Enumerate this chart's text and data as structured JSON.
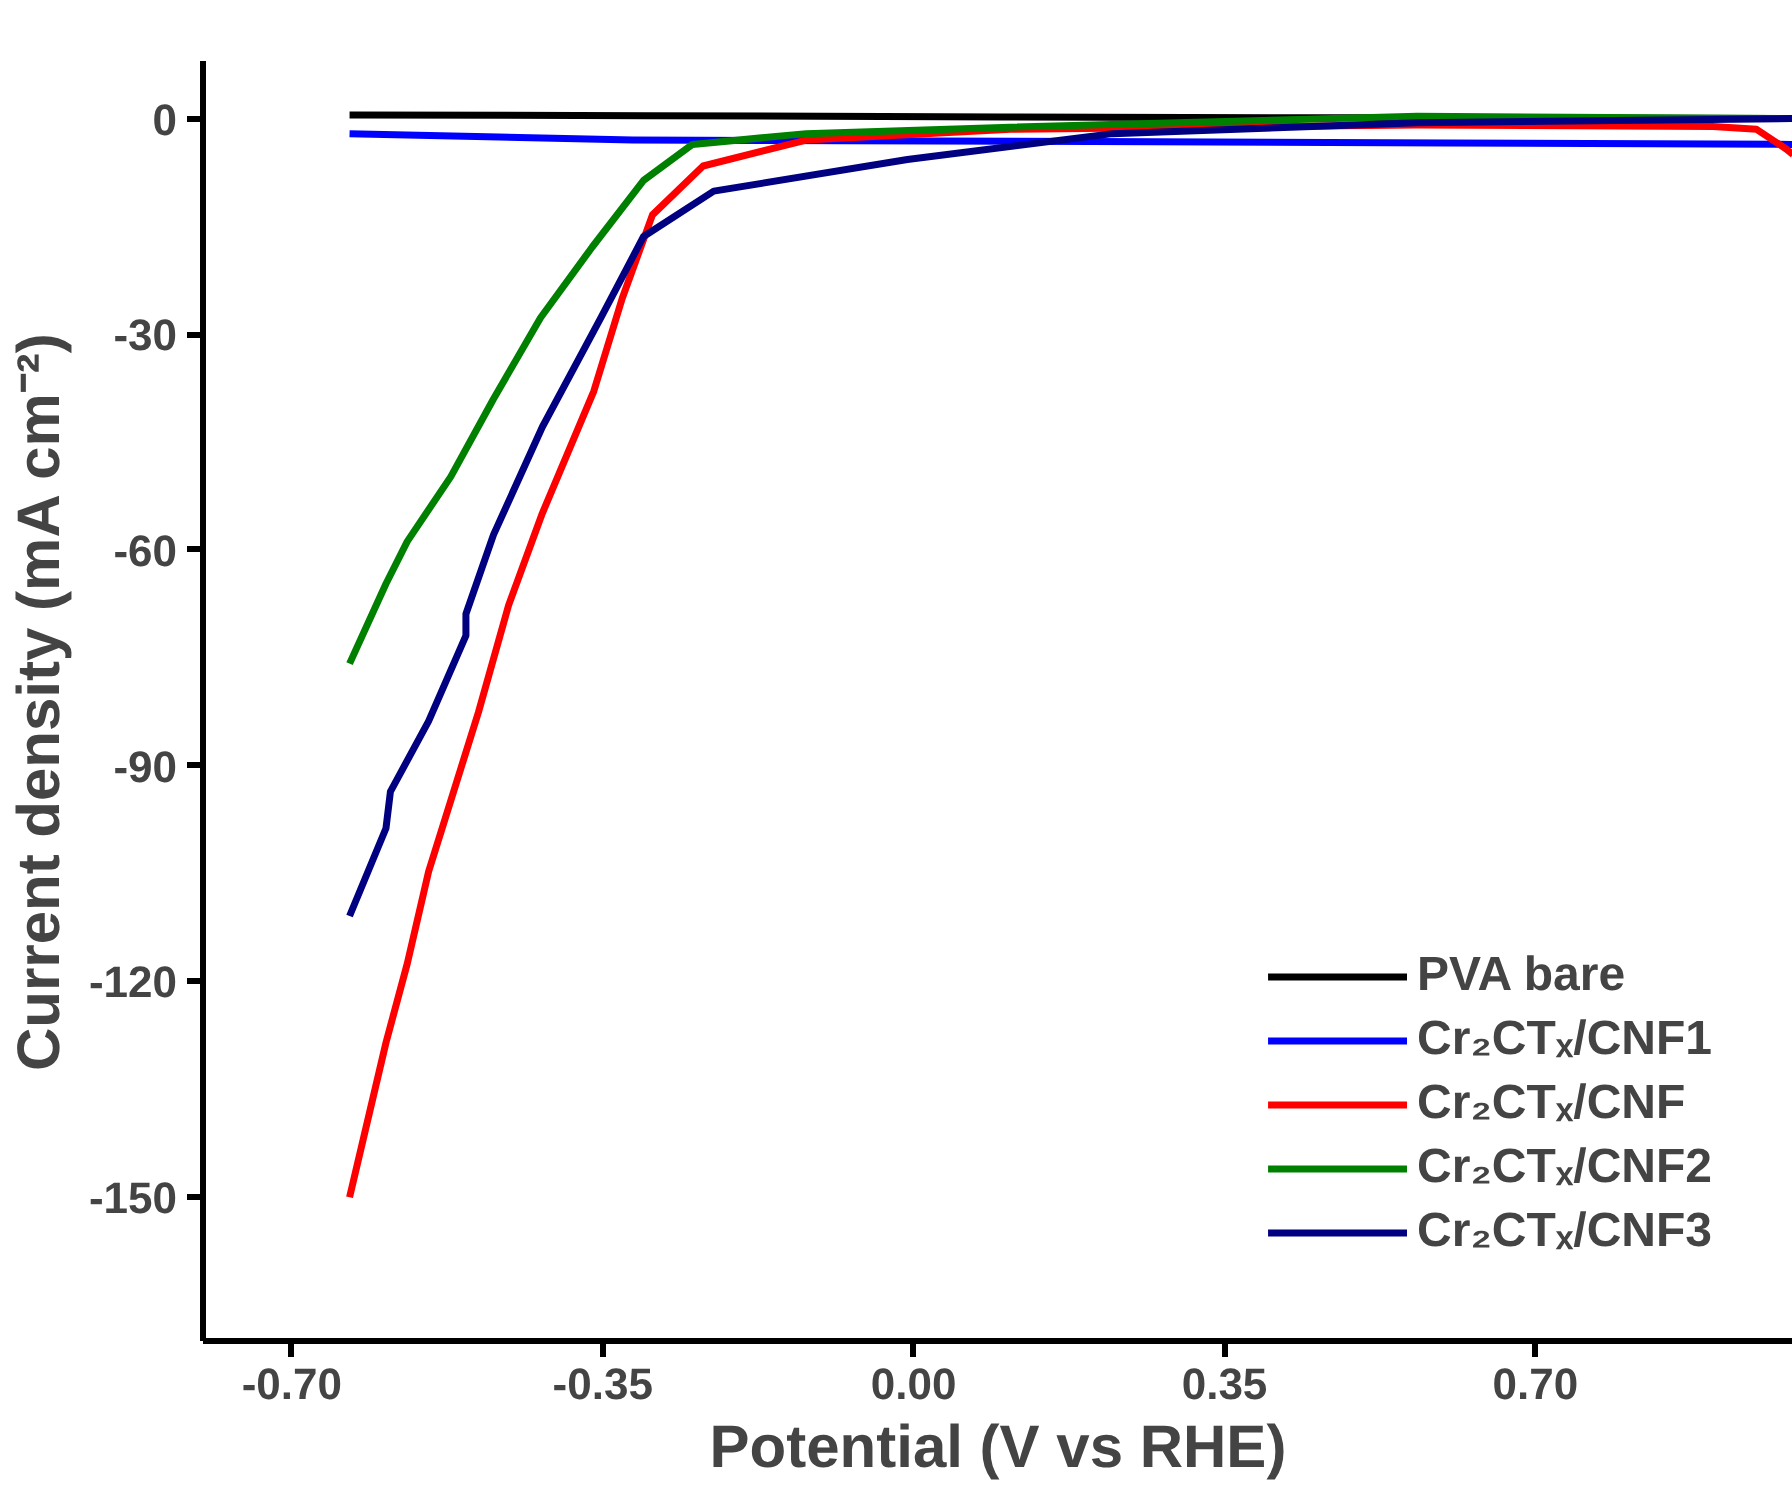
{
  "chart_data": {
    "type": "line",
    "xlabel": "Potential (V vs RHE)",
    "ylabel": "Current density (mA cm⁻²)",
    "xlim": [
      -0.8,
      0.99
    ],
    "ylim": [
      -170,
      8
    ],
    "xticks": [
      {
        "value": -0.7,
        "label": "-0.70"
      },
      {
        "value": -0.35,
        "label": "-0.35"
      },
      {
        "value": 0,
        "label": "0.00"
      },
      {
        "value": 0.35,
        "label": "0.35"
      },
      {
        "value": 0.7,
        "label": "0.70"
      }
    ],
    "yticks": [
      0,
      -30,
      -60,
      -90,
      -120,
      -150
    ],
    "grid": false,
    "legend": "bottom right",
    "line_style": "solid",
    "marker": "none",
    "series": [
      {
        "name": "PVA bare",
        "color": "#000000",
        "x": [
          -0.635,
          -0.3,
          0.1,
          0.5,
          0.99
        ],
        "values": [
          0.5,
          0.4,
          0.2,
          0.1,
          0
        ]
      },
      {
        "name": "Cr₂CTₓ/CNF1",
        "color": "#0000ff",
        "x": [
          -0.635,
          -0.316,
          0.2,
          0.6,
          0.99
        ],
        "values": [
          -2.1,
          -3,
          -3.2,
          -3.4,
          -3.6
        ]
      },
      {
        "name": "Cr₂CTₓ/CNF",
        "color": "#ff0000",
        "x": [
          -0.635,
          -0.594,
          -0.57,
          -0.546,
          -0.49,
          -0.456,
          -0.418,
          -0.36,
          -0.328,
          -0.294,
          -0.237,
          -0.121,
          0.109,
          0.567,
          0.9,
          0.949,
          0.982,
          0.99
        ],
        "values": [
          -150,
          -128.5,
          -117.5,
          -104.7,
          -82.6,
          -67.7,
          -54.9,
          -37.9,
          -25,
          -13.4,
          -6.6,
          -3,
          -1.5,
          -0.9,
          -1.1,
          -1.5,
          -4.2,
          -5
        ]
      },
      {
        "name": "Cr₂CTₓ/CNF2",
        "color": "#008000",
        "x": [
          -0.635,
          -0.594,
          -0.57,
          -0.521,
          -0.473,
          -0.42,
          -0.362,
          -0.304,
          -0.249,
          -0.121,
          0.109,
          0.567,
          0.99
        ],
        "values": [
          -75.8,
          -64.7,
          -58.8,
          -49.8,
          -39,
          -27.7,
          -17.9,
          -8.6,
          -3.6,
          -2.1,
          -1.2,
          0.3,
          0
        ]
      },
      {
        "name": "Cr₂CTₓ/CNF3",
        "color": "#000080",
        "x": [
          -0.635,
          -0.594,
          -0.589,
          -0.546,
          -0.504,
          -0.504,
          -0.473,
          -0.418,
          -0.352,
          -0.304,
          -0.225,
          -0.007,
          0.224,
          0.567,
          0.99
        ],
        "values": [
          -110.9,
          -98.7,
          -93.6,
          -83.8,
          -71.9,
          -68.9,
          -57.9,
          -42.9,
          -27.7,
          -16.4,
          -10.1,
          -5.7,
          -2.1,
          -0.6,
          0
        ]
      }
    ]
  }
}
